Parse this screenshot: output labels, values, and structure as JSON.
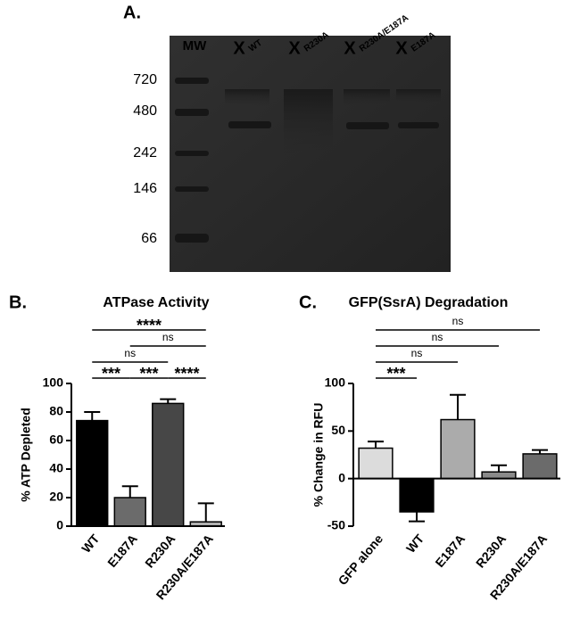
{
  "gel": {
    "label": "A.",
    "mw_label": "MW",
    "lane_marker": "X",
    "lanes": [
      "WT",
      "R230A",
      "R230A/E187A",
      "E187A"
    ],
    "mw_markers": [
      720,
      480,
      242,
      146,
      66
    ]
  },
  "chart_data": [
    {
      "type": "bar",
      "label": "B.",
      "title": "ATPase Activity",
      "y_label": "% ATP Depleted",
      "categories": [
        "WT",
        "E187A",
        "R230A",
        "R230A/E187A"
      ],
      "values": [
        74,
        20,
        86,
        3
      ],
      "errors": [
        6,
        8,
        3,
        13
      ],
      "colors": [
        "#000000",
        "#6b6b6b",
        "#474747",
        "#b0b0b0"
      ],
      "ylim": [
        0,
        100
      ],
      "yticks": [
        0,
        20,
        40,
        60,
        80,
        100
      ],
      "annotations": [
        {
          "text": "****",
          "from": "WT",
          "to": "R230A/E187A"
        },
        {
          "text": "ns",
          "from": "E187A",
          "to": "R230A/E187A"
        },
        {
          "text": "ns",
          "from": "WT",
          "to": "R230A"
        },
        {
          "text": "***",
          "from": "WT",
          "to": "E187A"
        },
        {
          "text": "***",
          "from": "E187A",
          "to": "R230A"
        },
        {
          "text": "****",
          "from": "R230A",
          "to": "R230A/E187A"
        }
      ]
    },
    {
      "type": "bar",
      "label": "C.",
      "title": "GFP(SsrA) Degradation",
      "y_label": "% Change in RFU",
      "categories": [
        "GFP alone",
        "WT",
        "E187A",
        "R230A",
        "R230A/E187A"
      ],
      "values": [
        32,
        -35,
        62,
        7,
        26
      ],
      "errors": [
        7,
        10,
        26,
        7,
        4
      ],
      "colors": [
        "#dcdcdc",
        "#000000",
        "#ababab",
        "#8a8a8a",
        "#6b6b6b"
      ],
      "ylim": [
        -50,
        100
      ],
      "yticks": [
        -50,
        0,
        50,
        100
      ],
      "annotations": [
        {
          "text": "ns",
          "from": "GFP alone",
          "to": "R230A/E187A"
        },
        {
          "text": "ns",
          "from": "GFP alone",
          "to": "R230A"
        },
        {
          "text": "ns",
          "from": "GFP alone",
          "to": "E187A"
        },
        {
          "text": "***",
          "from": "GFP alone",
          "to": "WT"
        }
      ]
    }
  ]
}
